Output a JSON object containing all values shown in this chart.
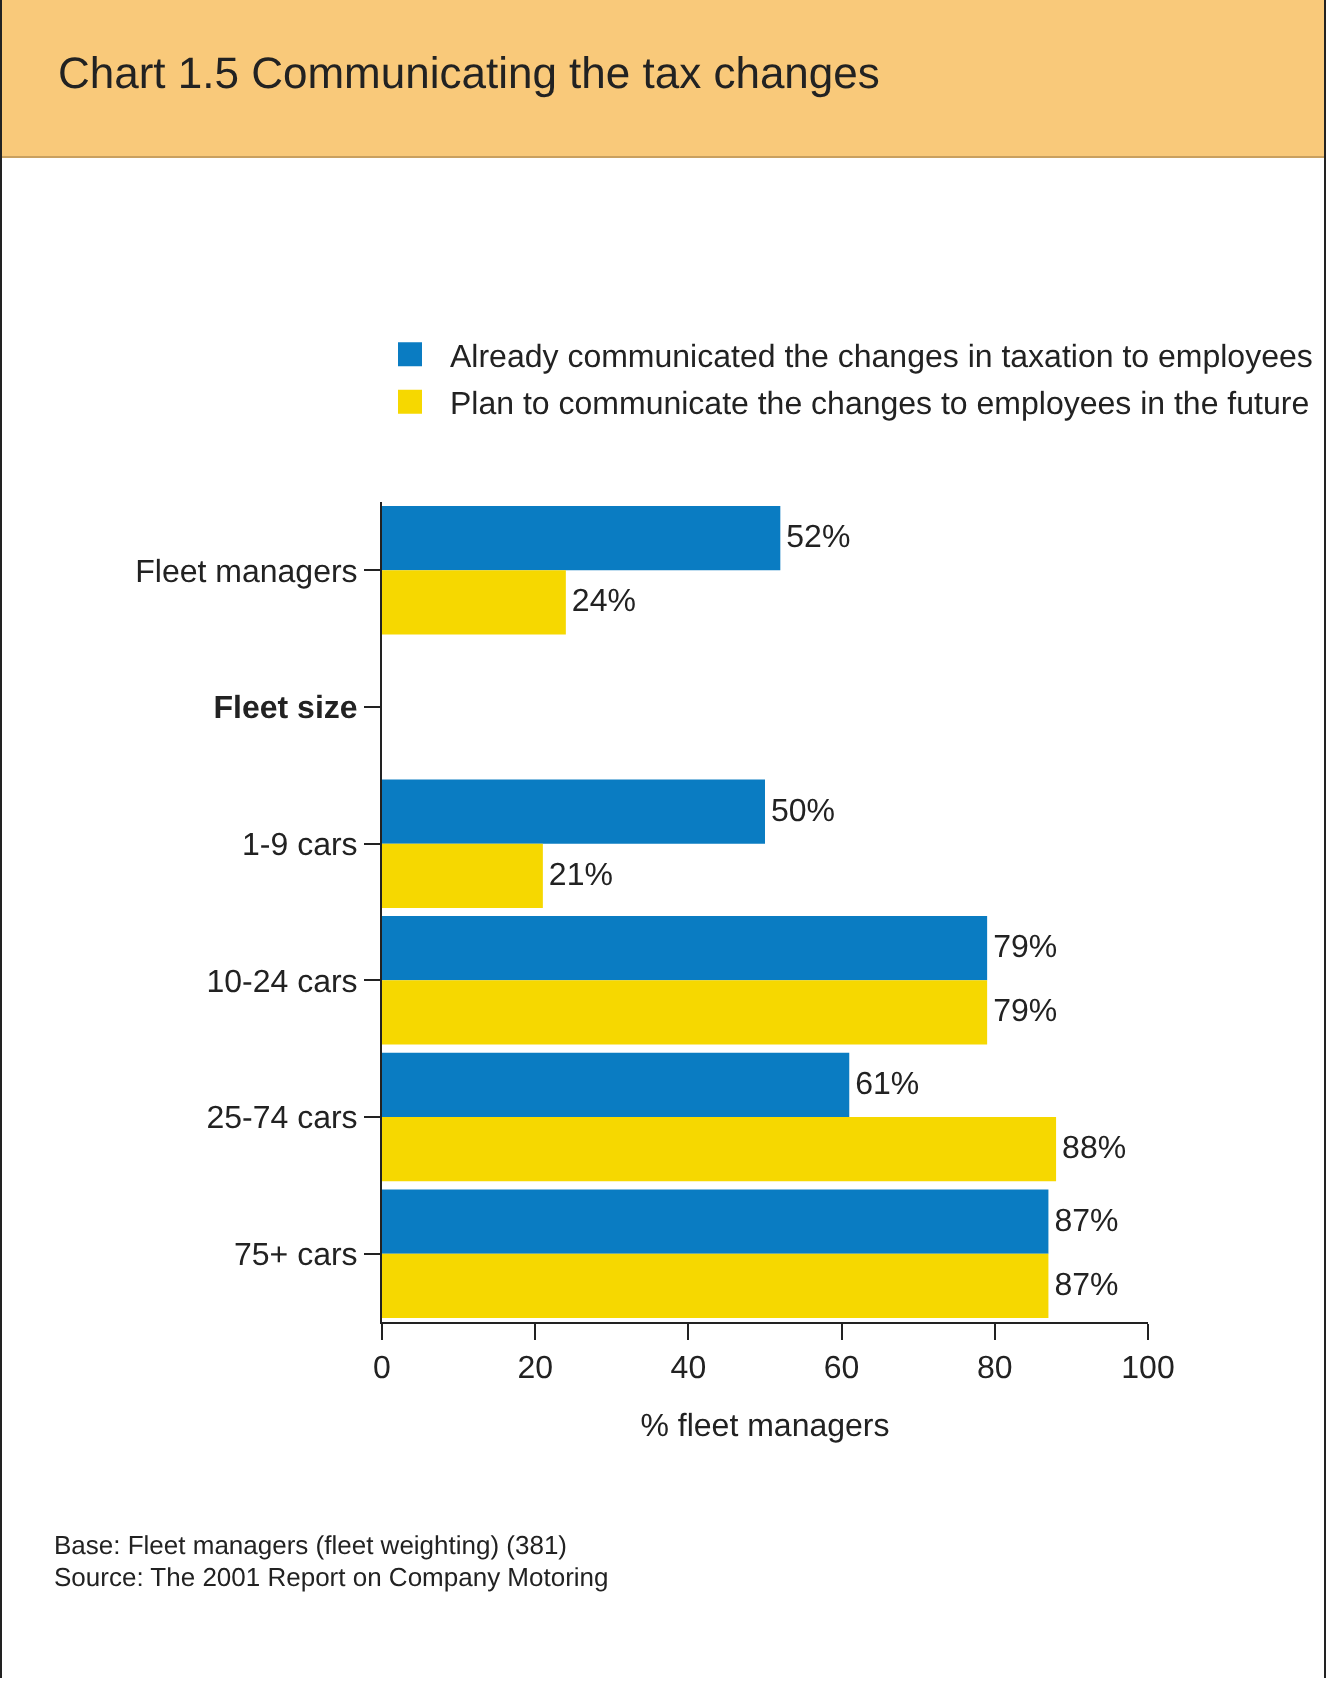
{
  "chart_data": {
    "type": "bar",
    "orientation": "horizontal",
    "title": "Chart 1.5  Communicating the tax changes",
    "categories": [
      "Fleet managers",
      "Fleet size",
      "1-9 cars",
      "10-24 cars",
      "25-74 cars",
      "75+ cars"
    ],
    "series": [
      {
        "name": "Already communicated the changes in taxation to employees",
        "color": "#0a7cc2",
        "values": [
          52,
          null,
          50,
          79,
          61,
          87
        ],
        "value_labels": [
          "52%",
          null,
          "50%",
          "79%",
          "61%",
          "87%"
        ]
      },
      {
        "name": "Plan to communicate the changes to employees in the future",
        "color": "#f6d800",
        "values": [
          24,
          null,
          21,
          79,
          88,
          87
        ],
        "value_labels": [
          "24%",
          null,
          "21%",
          "79%",
          "88%",
          "87%"
        ]
      }
    ],
    "xlim": [
      0,
      100
    ],
    "xticks": [
      0,
      20,
      40,
      60,
      80,
      100
    ],
    "xlabel": "% fleet managers",
    "grid": false,
    "legend": "top",
    "annotations": [
      "Base: Fleet managers (fleet weighting) (381)",
      "Source: The 2001 Report on Company Motoring"
    ]
  }
}
